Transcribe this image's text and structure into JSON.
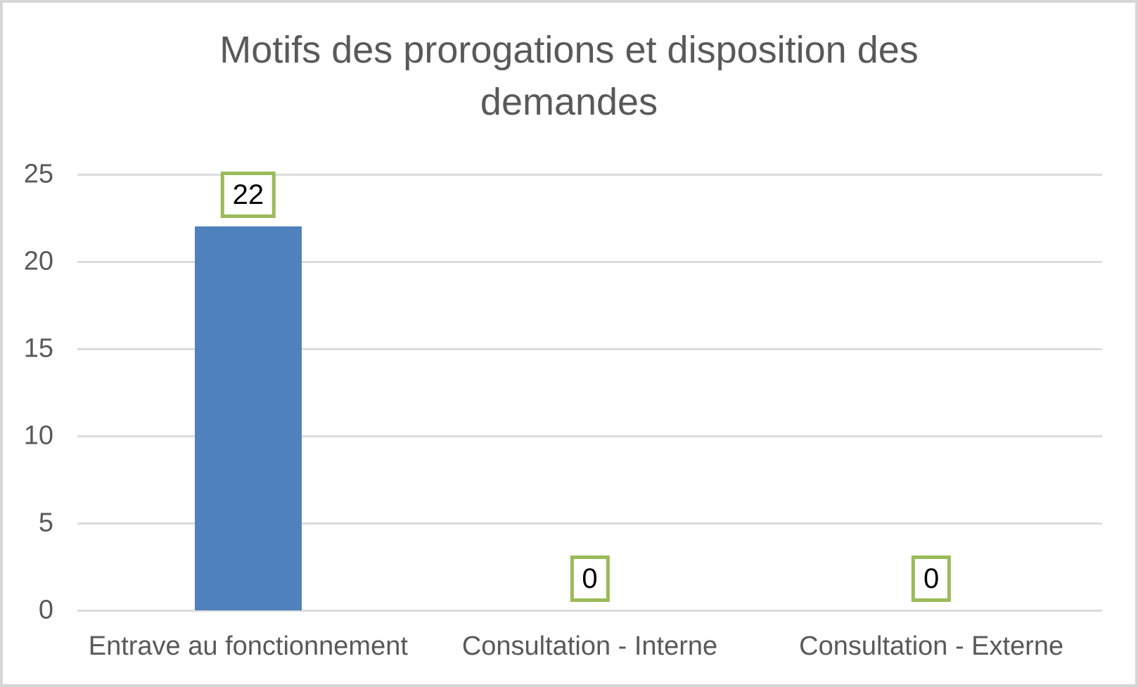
{
  "page": {
    "background_color": "#ffffff",
    "border_color": "#d6d6d6"
  },
  "chart_data": {
    "type": "bar",
    "title": "Motifs des prorogations et disposition des demandes",
    "categories": [
      "Entrave au fonctionnement",
      "Consultation - Interne",
      "Consultation - Externe"
    ],
    "values": [
      22,
      0,
      0
    ],
    "data_labels": [
      "22",
      "0",
      "0"
    ],
    "xlabel": "",
    "ylabel": "",
    "ylim": [
      0,
      25
    ],
    "yticks": [
      0,
      5,
      10,
      15,
      20,
      25
    ],
    "grid": "horizontal",
    "legend": "none",
    "bar_color": "#4f81bd",
    "gridline_color": "#dcdcdc",
    "axis_text_color": "#595959",
    "title_color": "#595959",
    "data_label_text_color": "#000000",
    "data_label_box_border_color": "#9bbb59",
    "data_label_box_background": "#ffffff"
  }
}
